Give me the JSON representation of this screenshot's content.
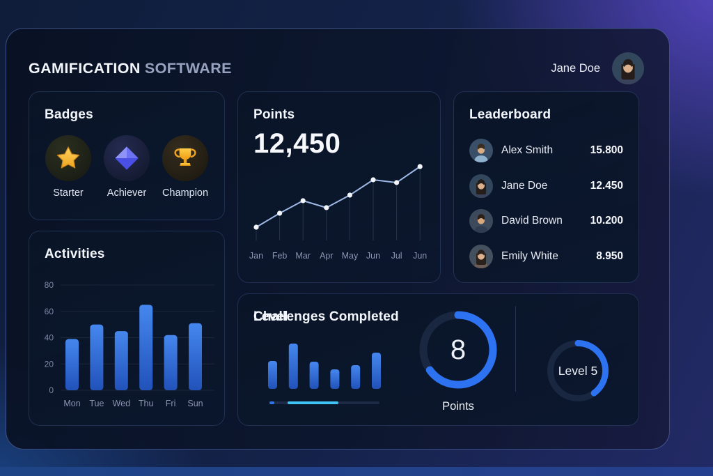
{
  "header": {
    "brand_primary": "GAMIFICATION",
    "brand_secondary": "SOFTWARE",
    "user_name": "Jane Doe"
  },
  "badges": {
    "title": "Badges",
    "items": [
      {
        "label": "Starter",
        "icon": "star-icon"
      },
      {
        "label": "Achiever",
        "icon": "diamond-icon"
      },
      {
        "label": "Champion",
        "icon": "trophy-icon"
      }
    ]
  },
  "points_card": {
    "title": "Points",
    "value": "12,450"
  },
  "leaderboard": {
    "title": "Leaderboard",
    "rows": [
      {
        "name": "Alex Smith",
        "score": "15.800"
      },
      {
        "name": "Jane Doe",
        "score": "12.450"
      },
      {
        "name": "David Brown",
        "score": "10.200"
      },
      {
        "name": "Emily White",
        "score": "8.950"
      }
    ]
  },
  "activities": {
    "title": "Activities"
  },
  "challenges": {
    "title": "Challenges Completed",
    "ring_value": "8",
    "ring_label": "Points"
  },
  "level": {
    "title": "Level",
    "ring_label": "Level 5"
  },
  "colors": {
    "accent_blue": "#2d72f1",
    "bar_gradient_top": "#4587ee",
    "bar_gradient_bottom": "#2152ba",
    "line_blue": "#9db9e4",
    "progress_cyan": "#3ec3f2",
    "gold": "#f5b93f",
    "diamond_blue": "#5a60ee"
  },
  "chart_data": [
    {
      "id": "points_trend",
      "type": "line",
      "title": "Points",
      "x": [
        "Jan",
        "Feb",
        "Mar",
        "Apr",
        "May",
        "Jun",
        "Jul",
        "Jun"
      ],
      "values": [
        19,
        39,
        57,
        47,
        65,
        87,
        83,
        106
      ],
      "ylabel": "",
      "note": "no y-axis shown; values are relative estimates, white dot markers with vertical drop lines",
      "legend": "none",
      "grid": false
    },
    {
      "id": "weekly_activities",
      "type": "bar",
      "title": "Activities",
      "categories": [
        "Mon",
        "Tue",
        "Wed",
        "Thu",
        "Fri",
        "Sun"
      ],
      "values": [
        39,
        50,
        45,
        65,
        42,
        51
      ],
      "ylim": [
        0,
        80
      ],
      "yticks": [
        0,
        20,
        40,
        60,
        80
      ],
      "grid": true,
      "legend": "none"
    },
    {
      "id": "challenges_mini_bars",
      "type": "bar",
      "title": "Challenges Completed",
      "categories": [
        "",
        "",
        "",
        "",
        "",
        ""
      ],
      "values": [
        40,
        65,
        39,
        28,
        34,
        52
      ],
      "note": "unlabeled sparkline-style bars"
    },
    {
      "id": "challenges_gauge",
      "type": "donut-gauge",
      "value": 8,
      "label": "Points",
      "percent": 65
    },
    {
      "id": "level_gauge",
      "type": "donut-gauge",
      "label": "Level 5",
      "percent": 40
    },
    {
      "id": "challenges_progress",
      "type": "progress",
      "segments": [
        {
          "kind": "dot",
          "from_pct": 0,
          "to_pct": 4.5
        },
        {
          "kind": "fill",
          "from_pct": 16.5,
          "to_pct": 62.5
        }
      ]
    }
  ]
}
